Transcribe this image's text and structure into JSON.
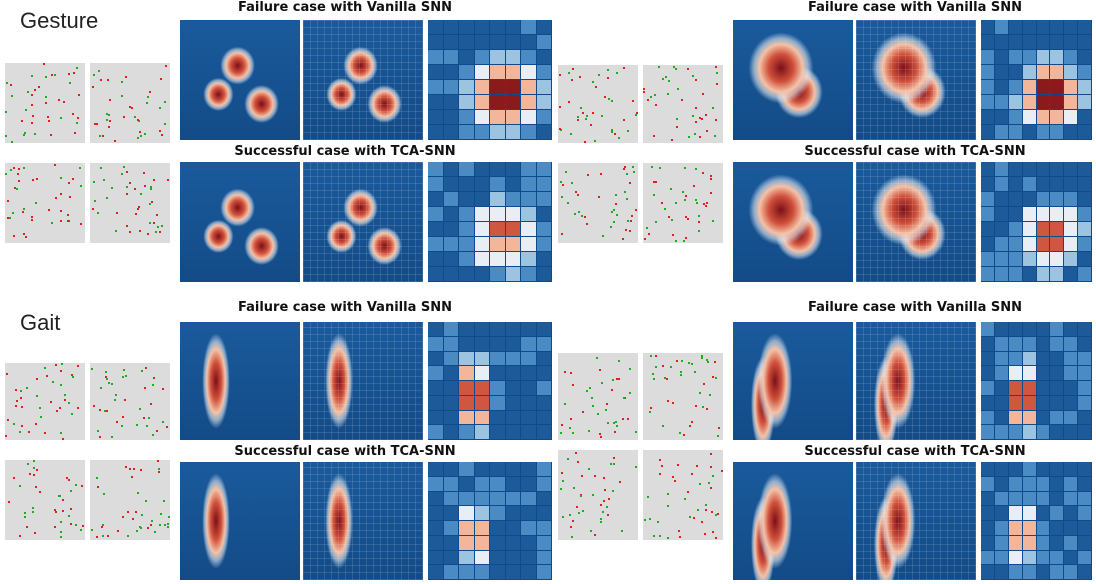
{
  "gesture": {
    "label": "Gesture",
    "left": {
      "failure_title": "Failure case with Vanilla SNN",
      "success_title": "Successful case with TCA-SNN"
    },
    "right": {
      "failure_title": "Failure case with Vanilla SNN",
      "success_title": "Successful case with TCA-SNN"
    }
  },
  "gait": {
    "label": "Gait",
    "left": {
      "failure_title": "Failure case with Vanilla SNN",
      "success_title": "Successful case with TCA-SNN"
    },
    "right": {
      "failure_title": "Failure case with Vanilla SNN",
      "success_title": "Successful case with TCA-SNN"
    }
  }
}
